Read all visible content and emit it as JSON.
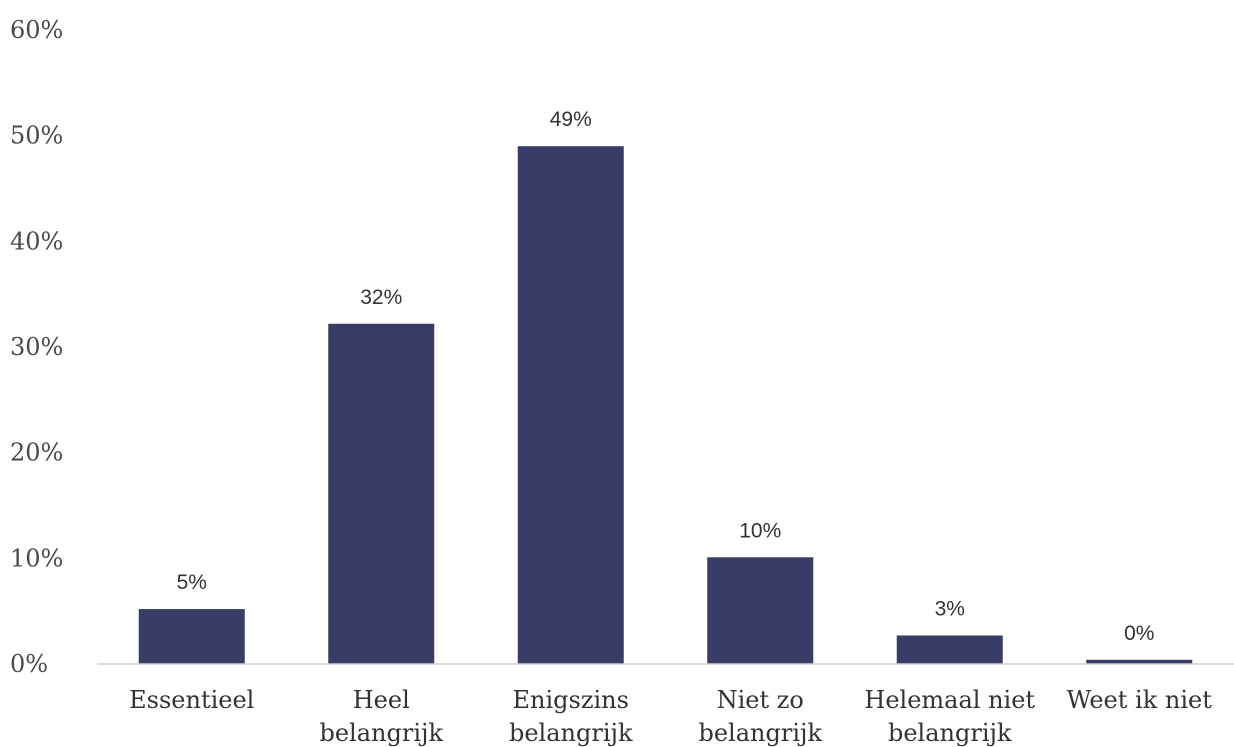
{
  "chart_data": {
    "type": "bar",
    "categories": [
      [
        "Essentieel"
      ],
      [
        "Heel",
        "belangrijk"
      ],
      [
        "Enigszins",
        "belangrijk"
      ],
      [
        "Niet zo",
        "belangrijk"
      ],
      [
        "Helemaal niet",
        "belangrijk"
      ],
      [
        "Weet ik niet"
      ]
    ],
    "values": [
      5.2,
      32.2,
      49.0,
      10.1,
      2.7,
      0.4
    ],
    "value_labels": [
      "5%",
      "32%",
      "49%",
      "10%",
      "3%",
      "0%"
    ],
    "ylim": [
      0,
      60
    ],
    "yticks": [
      0,
      10,
      20,
      30,
      40,
      50,
      60
    ],
    "ytick_labels": [
      "0%",
      "10%",
      "20%",
      "30%",
      "40%",
      "50%",
      "60%"
    ],
    "title": "",
    "xlabel": "",
    "ylabel": "",
    "grid": false,
    "legend": "none",
    "bar_color": "#383c66",
    "axis_color": "#d0d0d0"
  }
}
